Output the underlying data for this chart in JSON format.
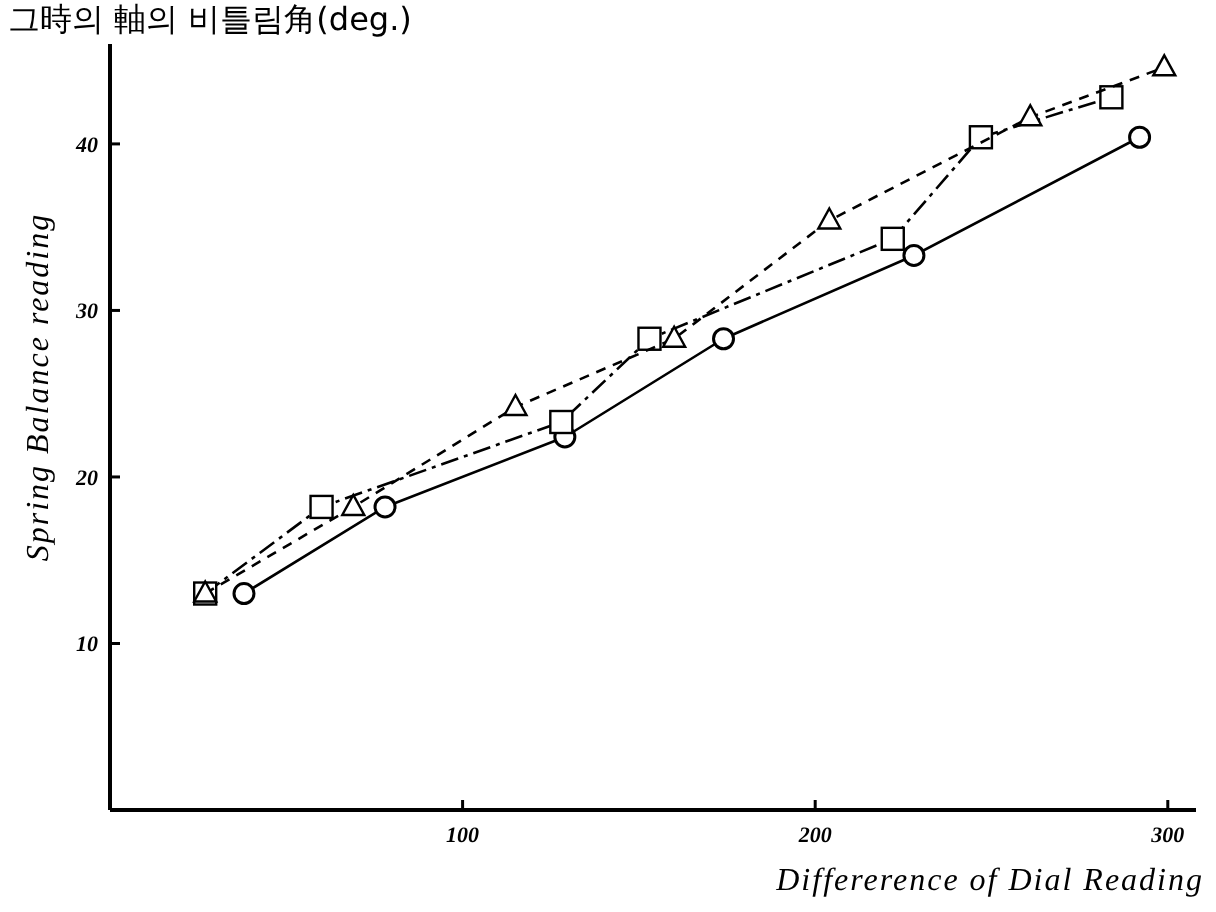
{
  "chart_data": {
    "type": "line",
    "title": "그時의 軸의 비틀림角(deg.)",
    "xlabel": "Differerence of Dial Reading",
    "ylabel": "Spring Balance reading",
    "xlim": [
      0,
      308
    ],
    "ylim": [
      0,
      46
    ],
    "xticks": [
      100,
      200,
      300
    ],
    "yticks": [
      10,
      20,
      30,
      40
    ],
    "grid": false,
    "series": [
      {
        "color": "#000000",
        "marker": "circle",
        "line_style": "solid",
        "x": [
          38,
          78,
          129,
          174,
          228,
          292
        ],
        "values": [
          13.0,
          18.2,
          22.4,
          28.3,
          33.3,
          40.4
        ]
      },
      {
        "color": "#000000",
        "marker": "square",
        "line_style": "dashdot",
        "x": [
          27,
          60,
          128,
          153,
          222,
          247,
          284
        ],
        "values": [
          13.0,
          18.2,
          23.3,
          28.3,
          34.3,
          40.4,
          42.8
        ]
      },
      {
        "color": "#000000",
        "marker": "triangle",
        "line_style": "dashed",
        "x": [
          27,
          69,
          115,
          160,
          204,
          261,
          299
        ],
        "values": [
          13.0,
          18.2,
          24.2,
          28.3,
          35.4,
          41.6,
          44.6
        ]
      }
    ]
  }
}
